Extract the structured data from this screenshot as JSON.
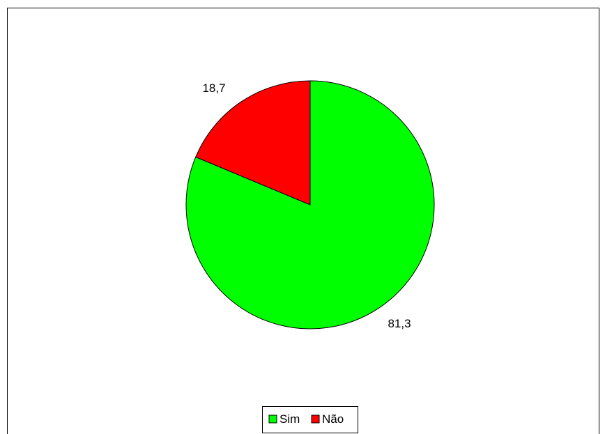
{
  "chart_data": {
    "type": "pie",
    "title": "",
    "slices": [
      {
        "label": "Sim",
        "value": 81.3,
        "value_text": "81,3",
        "color": "#00ff00"
      },
      {
        "label": "Não",
        "value": 18.7,
        "value_text": "18,7",
        "color": "#ff0000"
      }
    ],
    "start_angle": "12 o'clock",
    "direction": "clockwise",
    "legend": {
      "placement": "bottom-center",
      "items": [
        "Sim",
        "Não"
      ]
    }
  }
}
